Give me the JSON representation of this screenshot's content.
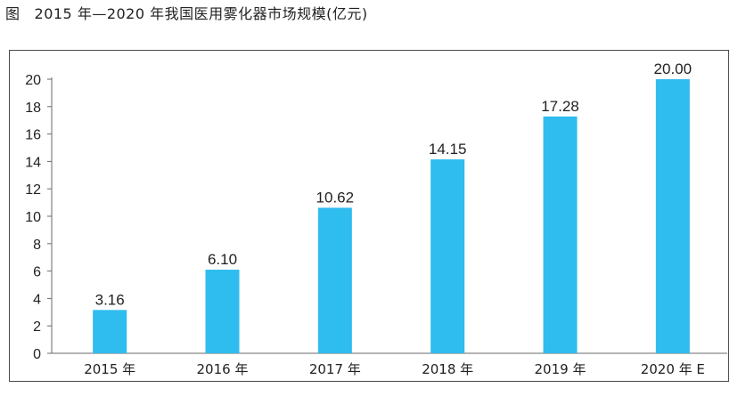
{
  "figure": {
    "label": "图",
    "title": "2015 年—2020 年我国医用雾化器市场规模(亿元)"
  },
  "colors": {
    "bar": "#2fbcee",
    "axis": "#6a6a6a",
    "frame": "#4a4a4a"
  },
  "chart_data": {
    "type": "bar",
    "title": "2015 年—2020 年我国医用雾化器市场规模(亿元)",
    "categories": [
      "2015 年",
      "2016 年",
      "2017 年",
      "2018 年",
      "2019 年",
      "2020 年 E"
    ],
    "values": [
      3.16,
      6.1,
      10.62,
      14.15,
      17.28,
      20.0
    ],
    "value_labels": [
      "3.16",
      "6.10",
      "10.62",
      "14.15",
      "17.28",
      "20.00"
    ],
    "xlabel": "",
    "ylabel": "",
    "ylim": [
      0,
      20
    ],
    "yticks": [
      0,
      2,
      4,
      6,
      8,
      10,
      12,
      14,
      16,
      18,
      20
    ],
    "grid": false,
    "legend": "none"
  }
}
